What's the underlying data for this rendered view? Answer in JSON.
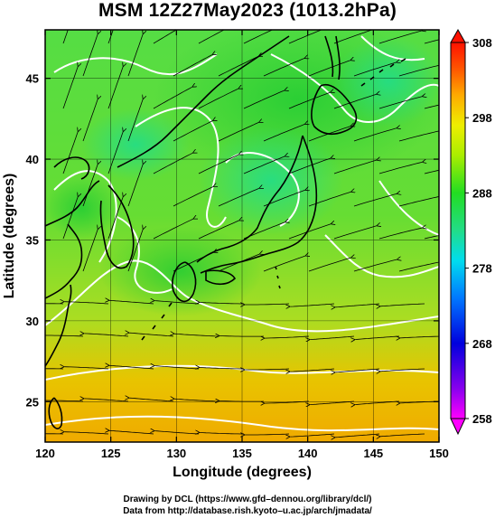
{
  "title": "MSM 12Z27May2023 (1013.2hPa)",
  "x_axis": {
    "label": "Longitude (degrees)",
    "ticks": [
      "120",
      "125",
      "130",
      "135",
      "140",
      "145",
      "150"
    ]
  },
  "y_axis": {
    "label": "Latitude  (degrees)",
    "ticks": [
      "25",
      "30",
      "35",
      "40",
      "45"
    ]
  },
  "colorbar": {
    "ticks": [
      "258",
      "268",
      "278",
      "288",
      "298",
      "308"
    ]
  },
  "credits": [
    "Drawing by DCL (https://www.gfd–dennou.org/library/dcl/)",
    "Data from http://database.rish.kyoto–u.ac.jp/arch/jmadata/"
  ],
  "colors": {
    "background": "#ffffff",
    "frame": "#000000",
    "contour": "#ffffff",
    "coast": "#000000",
    "field_low": "#ff00ff",
    "field_mid": "#33dd33",
    "field_high": "#ff3300"
  }
}
